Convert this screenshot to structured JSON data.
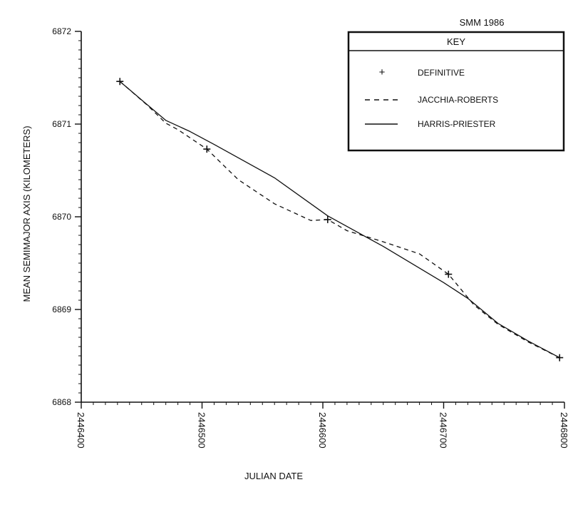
{
  "chart_data": {
    "type": "line",
    "title": "SMM 1986",
    "xlabel": "JULIAN DATE",
    "ylabel": "MEAN SEMIMAJOR AXIS  (KILOMETERS)",
    "xlim": [
      2446400,
      2446800
    ],
    "ylim": [
      6868,
      6872
    ],
    "x_ticks": [
      "2446400",
      "2446500",
      "2446600",
      "2446700",
      "2446800"
    ],
    "y_ticks": [
      "6868",
      "6869",
      "6870",
      "6871",
      "6872"
    ],
    "legend": {
      "title": "KEY",
      "placement": "top-right",
      "entries": [
        "DEFINITIVE",
        "JACCHIA-ROBERTS",
        "HARRIS-PRIESTER"
      ]
    },
    "series": [
      {
        "name": "DEFINITIVE",
        "style": "plus-markers",
        "x": [
          2446432,
          2446504,
          2446604,
          2446704,
          2446796
        ],
        "y": [
          6871.46,
          6870.73,
          6869.97,
          6869.38,
          6868.48
        ]
      },
      {
        "name": "JACCHIA-ROBERTS",
        "style": "dashed",
        "x": [
          2446432,
          2446440,
          2446455,
          2446470,
          2446480,
          2446504,
          2446530,
          2446560,
          2446590,
          2446604,
          2446620,
          2446650,
          2446680,
          2446704,
          2446725,
          2446745,
          2446770,
          2446796
        ],
        "y": [
          6871.46,
          6871.37,
          6871.2,
          6871.01,
          6870.94,
          6870.73,
          6870.4,
          6870.14,
          6869.96,
          6869.97,
          6869.85,
          6869.73,
          6869.6,
          6869.38,
          6869.05,
          6868.84,
          6868.65,
          6868.48
        ]
      },
      {
        "name": "HARRIS-PRIESTER",
        "style": "solid",
        "x": [
          2446432,
          2446450,
          2446470,
          2446490,
          2446510,
          2446560,
          2446604,
          2446650,
          2446700,
          2446720,
          2446745,
          2446770,
          2446796
        ],
        "y": [
          6871.46,
          6871.26,
          6871.04,
          6870.92,
          6870.78,
          6870.42,
          6870.01,
          6869.68,
          6869.29,
          6869.12,
          6868.85,
          6868.66,
          6868.48
        ]
      }
    ]
  }
}
